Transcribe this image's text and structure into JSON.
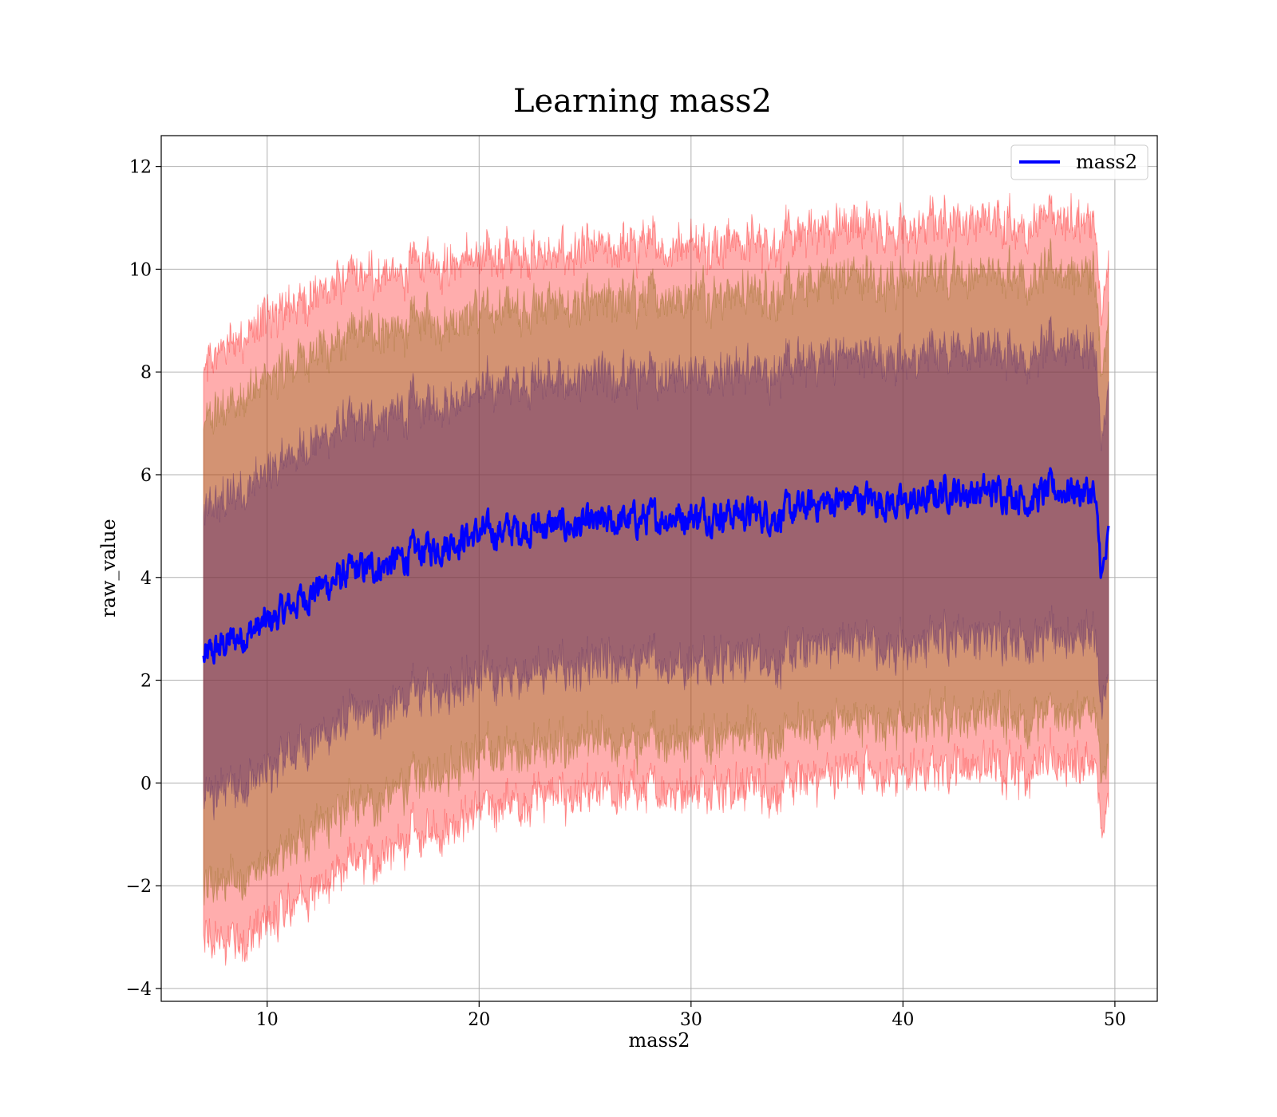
{
  "chart_data": {
    "type": "line",
    "title": "Learning mass2",
    "xlabel": "mass2",
    "ylabel": "raw_value",
    "xlim": [
      5,
      52
    ],
    "ylim": [
      -4.25,
      12.6
    ],
    "xticks": [
      10,
      20,
      30,
      40,
      50
    ],
    "yticks": [
      -4,
      -2,
      0,
      2,
      4,
      6,
      8,
      10,
      12
    ],
    "ytick_labels": [
      "−4",
      "−2",
      "0",
      "2",
      "4",
      "6",
      "8",
      "10",
      "12"
    ],
    "grid": true,
    "legend": {
      "position": "top-right",
      "entries": [
        "mass2"
      ]
    },
    "x_range": [
      7,
      49.7
    ],
    "mean_series": {
      "name": "mass2",
      "color": "#0000ff",
      "x": [
        7,
        8,
        9,
        10,
        11,
        12,
        13,
        14,
        15,
        16,
        17,
        18,
        19,
        20,
        21,
        22,
        23,
        24,
        25,
        26,
        27,
        28,
        29,
        30,
        31,
        32,
        33,
        34,
        35,
        36,
        37,
        38,
        39,
        40,
        41,
        42,
        43,
        44,
        45,
        46,
        47,
        48,
        49,
        49.4,
        49.7
      ],
      "y": [
        2.4,
        2.7,
        2.9,
        3.1,
        3.4,
        3.7,
        3.9,
        4.1,
        4.2,
        4.3,
        4.5,
        4.6,
        4.75,
        4.85,
        4.9,
        4.95,
        5.0,
        5.0,
        5.0,
        5.05,
        5.1,
        5.15,
        5.2,
        5.2,
        5.25,
        5.25,
        5.25,
        5.2,
        5.3,
        5.45,
        5.5,
        5.55,
        5.5,
        5.4,
        5.5,
        5.7,
        5.65,
        5.65,
        5.7,
        5.5,
        5.7,
        5.7,
        5.65,
        4.0,
        4.7
      ]
    },
    "bands": [
      {
        "label_sd": 3,
        "color": "#ff0000",
        "fill_opacity": 0.32,
        "half_width": [
          5.6,
          5.8,
          5.9,
          5.9,
          5.85,
          5.8,
          5.75,
          5.7,
          5.65,
          5.6,
          5.55,
          5.5,
          5.45,
          5.4,
          5.35,
          5.3,
          5.3,
          5.3,
          5.3,
          5.3,
          5.3,
          5.3,
          5.3,
          5.3,
          5.3,
          5.3,
          5.3,
          5.3,
          5.3,
          5.3,
          5.3,
          5.3,
          5.3,
          5.3,
          5.3,
          5.3,
          5.3,
          5.3,
          5.3,
          5.3,
          5.3,
          5.3,
          5.3,
          5.0,
          5.3
        ]
      },
      {
        "label_sd": 2,
        "color": "#8b6914",
        "fill_opacity": 0.38,
        "half_width": [
          4.6,
          4.6,
          4.7,
          4.7,
          4.7,
          4.65,
          4.6,
          4.6,
          4.55,
          4.5,
          4.45,
          4.4,
          4.35,
          4.3,
          4.3,
          4.3,
          4.3,
          4.3,
          4.3,
          4.3,
          4.3,
          4.3,
          4.3,
          4.3,
          4.3,
          4.3,
          4.3,
          4.3,
          4.3,
          4.3,
          4.3,
          4.3,
          4.3,
          4.3,
          4.3,
          4.3,
          4.3,
          4.3,
          4.3,
          4.3,
          4.3,
          4.3,
          4.3,
          3.9,
          4.2
        ]
      },
      {
        "label_sd": 1,
        "color": "#5a2a6a",
        "fill_opacity": 0.45,
        "half_width": [
          2.8,
          2.85,
          2.9,
          2.9,
          2.9,
          2.9,
          2.9,
          2.85,
          2.85,
          2.8,
          2.8,
          2.8,
          2.8,
          2.8,
          2.8,
          2.8,
          2.8,
          2.8,
          2.8,
          2.8,
          2.8,
          2.8,
          2.8,
          2.8,
          2.8,
          2.8,
          2.8,
          2.8,
          2.8,
          2.8,
          2.8,
          2.8,
          2.8,
          2.8,
          2.8,
          2.8,
          2.8,
          2.8,
          2.8,
          2.8,
          2.8,
          2.8,
          2.8,
          2.6,
          2.8
        ]
      }
    ]
  }
}
